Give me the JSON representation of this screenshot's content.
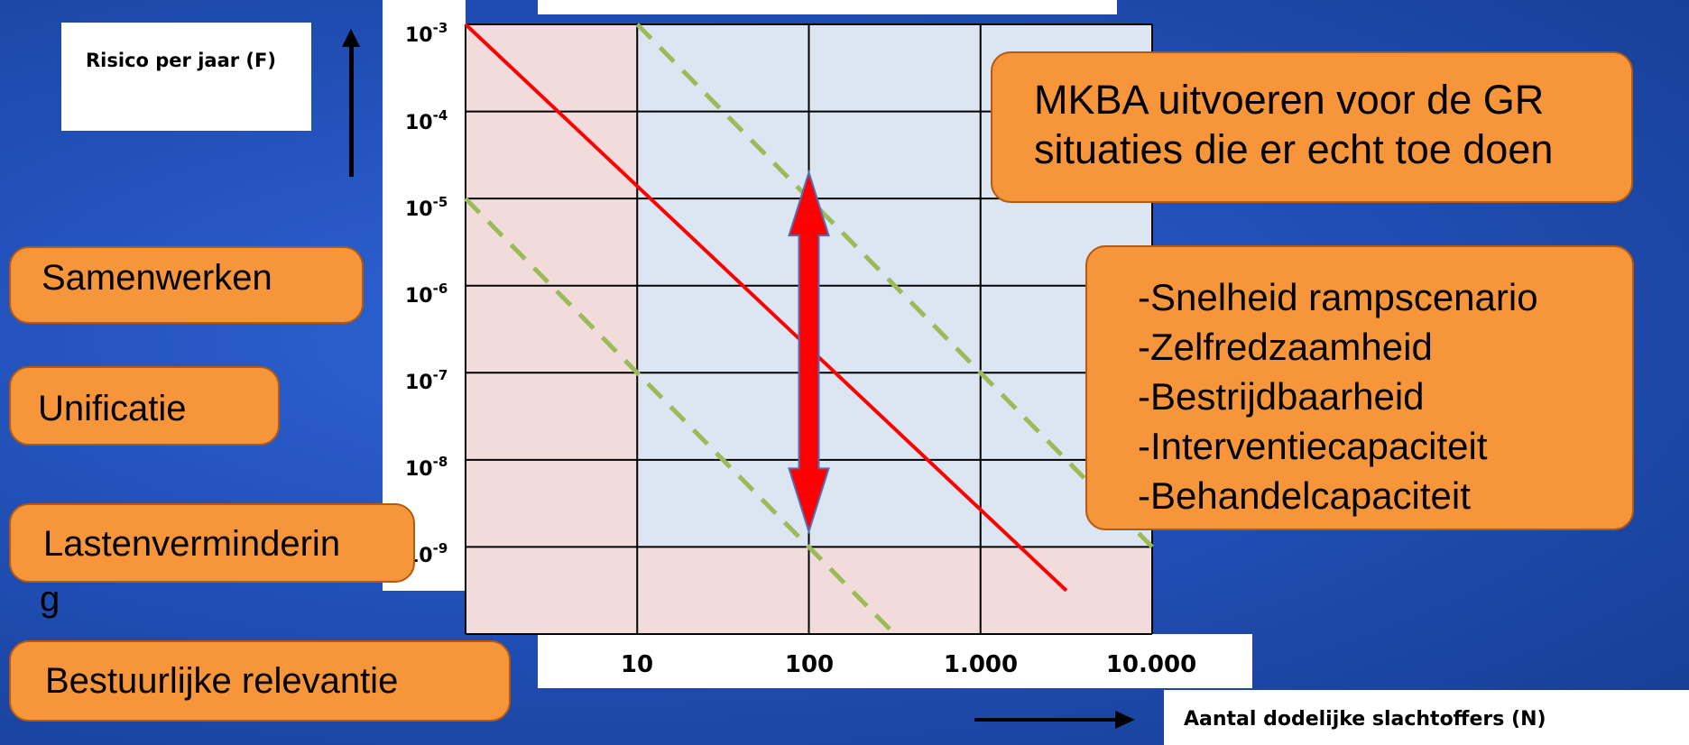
{
  "chart_data": {
    "type": "line",
    "xlabel": "Aantal dodelijke slachtoffers (N)",
    "ylabel": "Risico per jaar (F)",
    "x_scale": "log",
    "y_scale": "log",
    "xlim": [
      1,
      10000
    ],
    "ylim": [
      1e-10,
      0.001
    ],
    "x_ticks": [
      "10",
      "100",
      "1.000",
      "10.000"
    ],
    "y_ticks": [
      {
        "base": "10",
        "exp": "-3"
      },
      {
        "base": "10",
        "exp": "-4"
      },
      {
        "base": "10",
        "exp": "-5"
      },
      {
        "base": "10",
        "exp": "-6"
      },
      {
        "base": "10",
        "exp": "-7"
      },
      {
        "base": "10",
        "exp": "-8"
      },
      {
        "base": "10",
        "exp": "-9"
      }
    ],
    "grid": true,
    "series": [
      {
        "style": "solid",
        "color": "#ff0000",
        "x": [
          1,
          3162
        ],
        "y": [
          0.001,
          3.16e-10
        ]
      },
      {
        "style": "dashed",
        "color": "#9bbb59",
        "x": [
          10,
          10000
        ],
        "y": [
          0.001,
          1e-09
        ]
      },
      {
        "style": "dashed",
        "color": "#9bbb59",
        "x": [
          1,
          316
        ],
        "y": [
          1e-05,
          1e-10
        ]
      }
    ],
    "regions": [
      {
        "color": "#f2dcdb",
        "x": [
          1,
          10
        ],
        "y": [
          1e-10,
          0.001
        ]
      },
      {
        "color": "#f2dcdb",
        "x": [
          10,
          10000
        ],
        "y": [
          1e-10,
          1e-09
        ]
      },
      {
        "color": "#dce6f2",
        "x": [
          10,
          10000
        ],
        "y": [
          1e-09,
          0.001
        ]
      }
    ],
    "double_arrow": {
      "color": "#ff0000",
      "x": 100,
      "y_top": 2e-05,
      "y_bottom": 1.5e-09
    }
  },
  "annotations": {
    "mkba": {
      "lines": [
        "MKBA uitvoeren voor de GR",
        "situaties die er echt toe doen"
      ]
    },
    "factors": {
      "lines": [
        "-Snelheid rampscenario",
        "-Zelfredzaamheid",
        "-Bestrijdbaarheid",
        "-Interventiecapaciteit",
        "-Behandelcapaciteit"
      ]
    }
  },
  "left_labels": {
    "samenwerken": "Samenwerken",
    "unificatie": "Unificatie",
    "lastenvermindering_a": "Lastenverminderin",
    "lastenvermindering_b": "g",
    "bestuurlijk": "Bestuurlijke relevantie"
  },
  "colors": {
    "box_fill": "#f7953b",
    "box_border": "#b25a12",
    "background": "#2150b8"
  }
}
